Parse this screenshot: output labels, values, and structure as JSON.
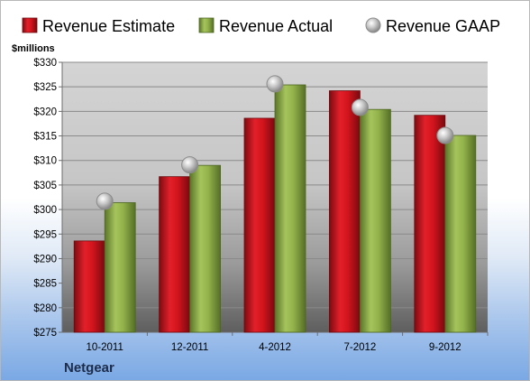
{
  "chart_data": {
    "type": "bar",
    "unit_label": "$millions",
    "company": "Netgear",
    "categories": [
      "10-2011",
      "12-2011",
      "4-2012",
      "7-2012",
      "9-2012"
    ],
    "series": [
      {
        "name": "Revenue Estimate",
        "kind": "bar",
        "color": "#c9141f",
        "values": [
          293.6,
          306.7,
          318.6,
          324.2,
          319.2
        ]
      },
      {
        "name": "Revenue Actual",
        "kind": "bar",
        "color": "#8cac47",
        "values": [
          301.4,
          309.0,
          325.4,
          320.4,
          315.1
        ]
      },
      {
        "name": "Revenue GAAP",
        "kind": "marker",
        "color": "#b9b9b9",
        "values": [
          301.7,
          309.1,
          325.6,
          320.8,
          315.1
        ]
      }
    ],
    "ylim": [
      275,
      330
    ],
    "ytick_step": 5,
    "ytick_labels": [
      "$275",
      "$280",
      "$285",
      "$290",
      "$295",
      "$300",
      "$305",
      "$310",
      "$315",
      "$320",
      "$325",
      "$330"
    ],
    "grid": true,
    "legend_position": "top"
  }
}
